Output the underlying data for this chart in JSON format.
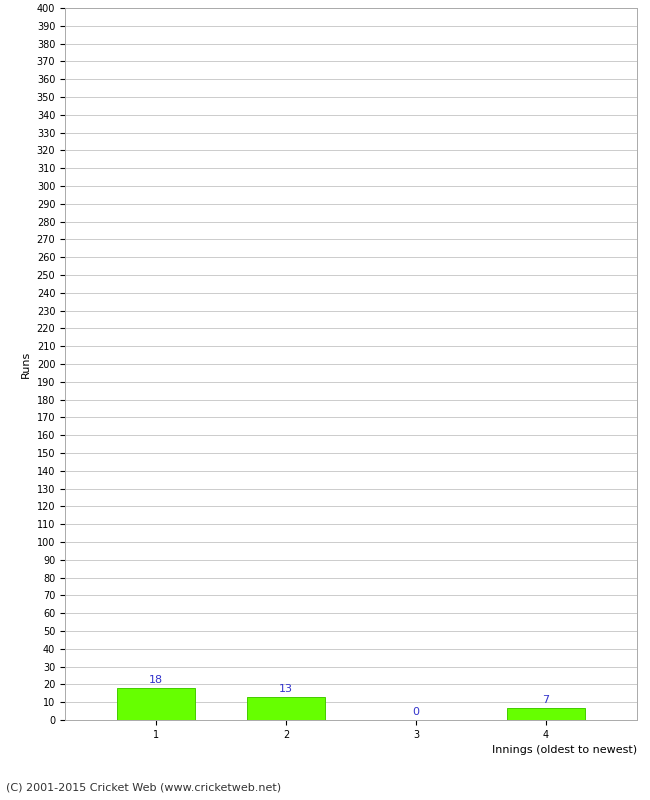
{
  "title": "",
  "categories": [
    1,
    2,
    3,
    4
  ],
  "values": [
    18,
    13,
    0,
    7
  ],
  "bar_color": "#66ff00",
  "bar_edge_color": "#44cc00",
  "label_color": "#3333cc",
  "xlabel": "Innings (oldest to newest)",
  "ylabel": "Runs",
  "ylim": [
    0,
    400
  ],
  "ytick_step": 10,
  "grid_color": "#cccccc",
  "background_color": "#ffffff",
  "footer_text": "(C) 2001-2015 Cricket Web (www.cricketweb.net)",
  "axis_label_fontsize": 8,
  "tick_fontsize": 7,
  "footer_fontsize": 8,
  "label_fontsize": 8,
  "bar_width": 0.6
}
